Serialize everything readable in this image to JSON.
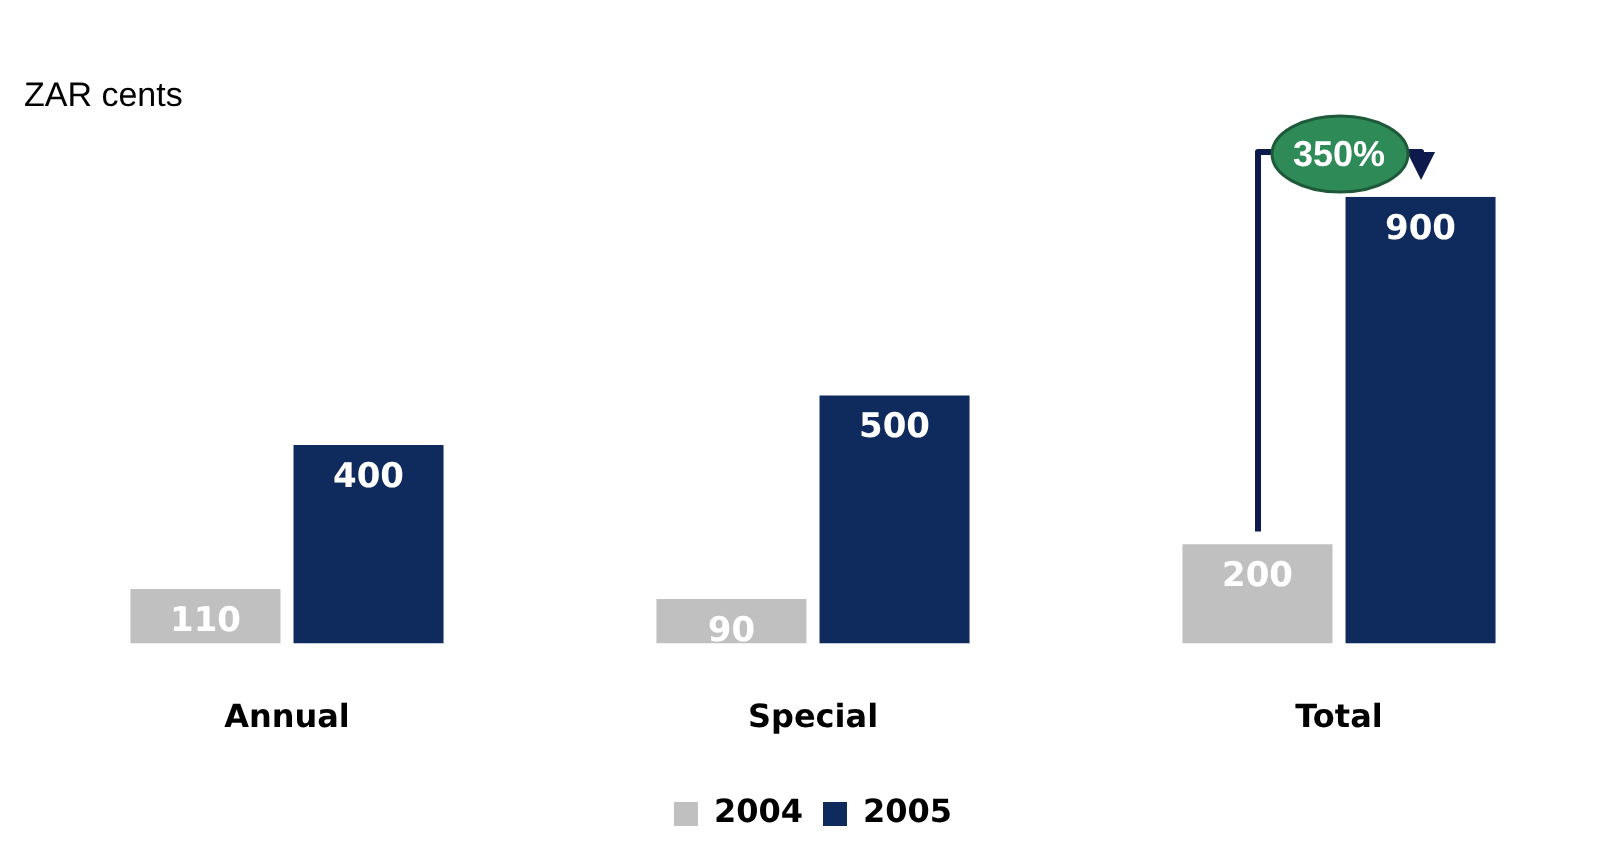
{
  "chart_data": {
    "type": "bar",
    "title": "ZAR cents",
    "categories": [
      "Annual",
      "Special",
      "Total"
    ],
    "series": [
      {
        "name": "2004",
        "color": "#c0c0c0",
        "values": [
          110,
          90,
          200
        ]
      },
      {
        "name": "2005",
        "color": "#0f2a5c",
        "values": [
          400,
          500,
          900
        ]
      }
    ],
    "data_labels": true,
    "legend": "bottom",
    "grid": false,
    "annotations": [
      "350%"
    ]
  }
}
